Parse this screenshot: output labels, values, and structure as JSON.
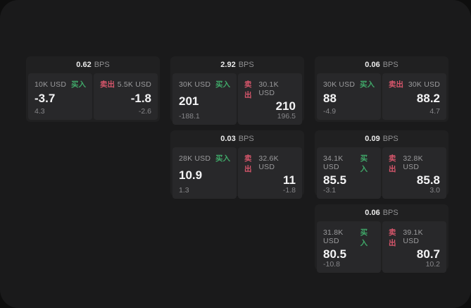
{
  "labels": {
    "bps_unit": "BPS",
    "buy": "买入",
    "sell": "卖出"
  },
  "colors": {
    "buy_green": "#40a869",
    "sell_red": "#d6566b",
    "outer_background": "#0e0e0e",
    "surface": "#1a1a1b",
    "card": "#202021",
    "tile": "#28282a"
  },
  "cards": [
    {
      "bps": "0.62",
      "buy": {
        "amount": "10K USD",
        "price": "-3.7",
        "delta": "4.3"
      },
      "sell": {
        "amount": "5.5K USD",
        "price": "-1.8",
        "delta": "-2.6"
      }
    },
    {
      "bps": "2.92",
      "buy": {
        "amount": "30K USD",
        "price": "201",
        "delta": "-188.1"
      },
      "sell": {
        "amount": "30.1K USD",
        "price": "210",
        "delta": "196.5"
      }
    },
    {
      "bps": "0.06",
      "buy": {
        "amount": "30K USD",
        "price": "88",
        "delta": "-4.9"
      },
      "sell": {
        "amount": "30K USD",
        "price": "88.2",
        "delta": "4.7"
      }
    },
    {
      "bps": "0.03",
      "buy": {
        "amount": "28K USD",
        "price": "10.9",
        "delta": "1.3"
      },
      "sell": {
        "amount": "32.6K USD",
        "price": "11",
        "delta": "-1.8"
      }
    },
    {
      "bps": "0.09",
      "buy": {
        "amount": "34.1K USD",
        "price": "85.5",
        "delta": "-3.1"
      },
      "sell": {
        "amount": "32.8K USD",
        "price": "85.8",
        "delta": "3.0"
      }
    },
    {
      "bps": "0.06",
      "buy": {
        "amount": "31.8K USD",
        "price": "80.5",
        "delta": "-10.8"
      },
      "sell": {
        "amount": "39.1K USD",
        "price": "80.7",
        "delta": "10.2"
      }
    }
  ]
}
